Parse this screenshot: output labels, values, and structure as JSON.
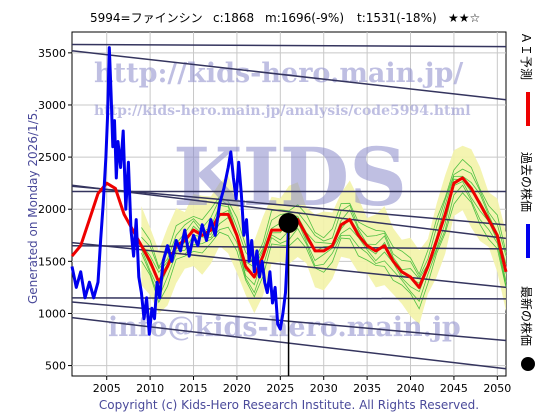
{
  "header": {
    "code_name": "5994=ファインシン",
    "current": "c:1868",
    "mid": "m:1696(-9%)",
    "target": "t:1531(-18%)",
    "stars": "★★☆"
  },
  "generated": "Generated on Monday 2026/1/5.",
  "copyright": "Copyright (c) Kids-Hero Research Institute. All Rights Reserved.",
  "watermarks": {
    "url_top": "http://kids-hero.main.jp/",
    "url_analysis": "http://kids-hero.main.jp/analysis/code5994.html",
    "email": "info@kids-hero.main.jp",
    "logo": "KIDS"
  },
  "legend": {
    "ai": "ＡＩ予測",
    "past": "過去の株価",
    "latest": "最新の株価"
  },
  "colors": {
    "price": "#0000ee",
    "ai": "#ee0000",
    "band_fill": "#f3f3a8",
    "band_green": "#28b428",
    "trend": "#34345e",
    "watermark": "#8c8ccc"
  },
  "chart_data": {
    "type": "line",
    "xlim": [
      2001,
      2051
    ],
    "ylim": [
      400,
      3700
    ],
    "x_ticks": [
      2005,
      2010,
      2015,
      2020,
      2025,
      2030,
      2035,
      2040,
      2045,
      2050
    ],
    "y_ticks": [
      500,
      1000,
      1500,
      2000,
      2500,
      3000,
      3500
    ],
    "grid": true,
    "latest_point": {
      "x": 2025.95,
      "y": 1868
    },
    "series": [
      {
        "name": "過去の株価",
        "x": [
          2001,
          2001.5,
          2002,
          2002.5,
          2003,
          2003.5,
          2004,
          2004.3,
          2004.6,
          2004.9,
          2005.1,
          2005.3,
          2005.5,
          2005.7,
          2005.9,
          2006.1,
          2006.3,
          2006.6,
          2006.9,
          2007.2,
          2007.5,
          2007.8,
          2008.1,
          2008.4,
          2008.7,
          2009.0,
          2009.3,
          2009.6,
          2009.9,
          2010.2,
          2010.5,
          2010.8,
          2011.1,
          2011.5,
          2012,
          2012.5,
          2013,
          2013.5,
          2014,
          2014.5,
          2015,
          2015.5,
          2016,
          2016.5,
          2017,
          2017.5,
          2018,
          2018.5,
          2019,
          2019.3,
          2019.6,
          2019.9,
          2020.2,
          2020.5,
          2020.8,
          2021.1,
          2021.4,
          2021.7,
          2022,
          2022.3,
          2022.6,
          2022.9,
          2023.2,
          2023.5,
          2023.8,
          2024.1,
          2024.4,
          2024.7,
          2025,
          2025.3,
          2025.6,
          2025.8,
          2025.95
        ],
        "y": [
          1450,
          1250,
          1400,
          1150,
          1300,
          1150,
          1300,
          1700,
          2050,
          2500,
          2900,
          3550,
          3100,
          2600,
          2850,
          2300,
          2650,
          2400,
          2750,
          2000,
          2450,
          1800,
          1550,
          1900,
          1350,
          1200,
          950,
          1150,
          800,
          1050,
          950,
          1300,
          1150,
          1500,
          1650,
          1500,
          1700,
          1600,
          1800,
          1550,
          1750,
          1650,
          1850,
          1700,
          1900,
          1750,
          2050,
          2200,
          2400,
          2550,
          2300,
          2100,
          2450,
          2150,
          1750,
          1900,
          1500,
          1700,
          1400,
          1600,
          1350,
          1500,
          1300,
          1200,
          1400,
          1100,
          1250,
          900,
          850,
          1000,
          1200,
          1550,
          1868
        ]
      },
      {
        "name": "ＡＩ予測",
        "x": [
          2001,
          2002,
          2003,
          2004,
          2005,
          2006,
          2007,
          2008,
          2009,
          2010,
          2011,
          2012,
          2013,
          2014,
          2015,
          2016,
          2017,
          2018,
          2019,
          2020,
          2021,
          2022,
          2023,
          2024,
          2025,
          2026,
          2027,
          2028,
          2029,
          2030,
          2031,
          2032,
          2033,
          2034,
          2035,
          2036,
          2037,
          2038,
          2039,
          2040,
          2041,
          2042,
          2043,
          2044,
          2045,
          2046,
          2047,
          2048,
          2049,
          2050,
          2051
        ],
        "y": [
          1550,
          1650,
          1900,
          2150,
          2250,
          2200,
          1950,
          1800,
          1650,
          1500,
          1300,
          1450,
          1650,
          1700,
          1800,
          1750,
          1800,
          1950,
          1950,
          1750,
          1450,
          1350,
          1550,
          1800,
          1800,
          1850,
          1900,
          1750,
          1600,
          1600,
          1650,
          1850,
          1900,
          1750,
          1650,
          1600,
          1650,
          1500,
          1400,
          1350,
          1250,
          1450,
          1700,
          1950,
          2250,
          2300,
          2200,
          2050,
          1900,
          1750,
          1400
        ]
      }
    ],
    "trend_lines": [
      {
        "x": [
          2001,
          2051
        ],
        "y": [
          3580,
          3560
        ]
      },
      {
        "x": [
          2001,
          2051
        ],
        "y": [
          3520,
          3050
        ]
      },
      {
        "x": [
          2001,
          2051
        ],
        "y": [
          2230,
          1720
        ]
      },
      {
        "x": [
          2001,
          2051
        ],
        "y": [
          2220,
          1850
        ]
      },
      {
        "x": [
          2001,
          2051
        ],
        "y": [
          2170,
          2170
        ]
      },
      {
        "x": [
          2001,
          2051
        ],
        "y": [
          1650,
          1620
        ]
      },
      {
        "x": [
          2001,
          2051
        ],
        "y": [
          1680,
          1250
        ]
      },
      {
        "x": [
          2001,
          2051
        ],
        "y": [
          1150,
          1140
        ]
      },
      {
        "x": [
          2001,
          2051
        ],
        "y": [
          1110,
          740
        ]
      },
      {
        "x": [
          2001,
          2051
        ],
        "y": [
          960,
          470
        ]
      }
    ]
  }
}
